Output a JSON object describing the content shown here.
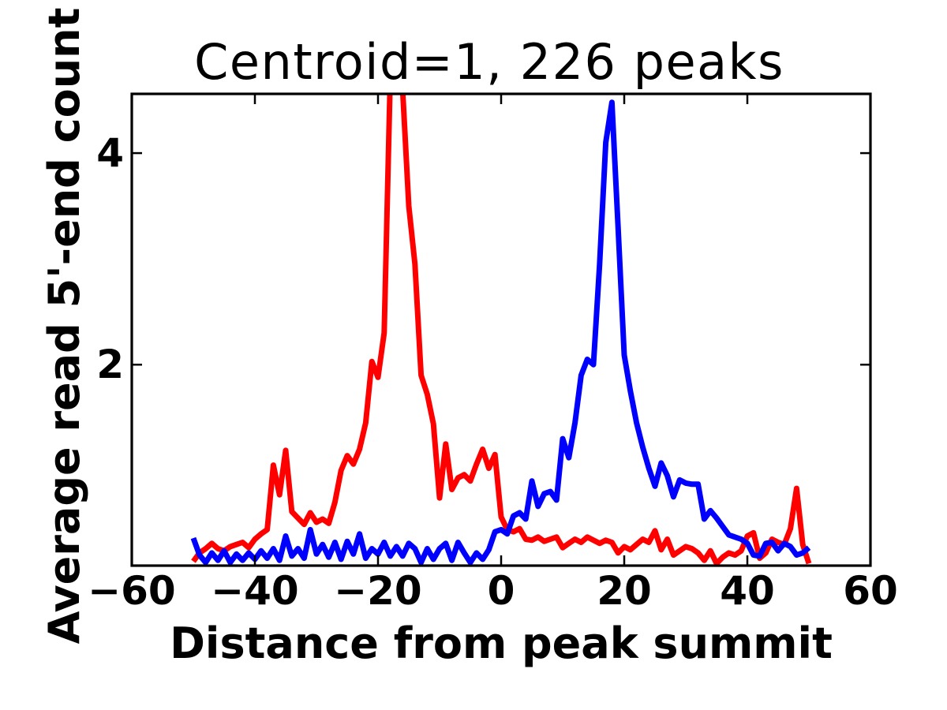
{
  "chart_data": {
    "type": "line",
    "title": "Centroid=1, 226 peaks",
    "xlabel": "Distance from peak summit",
    "ylabel": "Average read 5'-end count",
    "xlim": [
      -60,
      60
    ],
    "ylim": [
      0.1,
      4.56
    ],
    "xticks": [
      -60,
      -40,
      -20,
      0,
      20,
      40,
      60
    ],
    "xtick_labels": [
      "−60",
      "−40",
      "−20",
      "0",
      "20",
      "40",
      "60"
    ],
    "yticks": [
      2,
      4
    ],
    "ytick_labels": [
      "2",
      "4"
    ],
    "grid": false,
    "legend": "none",
    "frame_color": "#000000",
    "background_color": "#ffffff",
    "x": [
      -50,
      -49,
      -48,
      -47,
      -46,
      -45,
      -44,
      -43,
      -42,
      -41,
      -40,
      -39,
      -38,
      -37,
      -36,
      -35,
      -34,
      -33,
      -32,
      -31,
      -30,
      -29,
      -28,
      -27,
      -26,
      -25,
      -24,
      -23,
      -22,
      -21,
      -20,
      -19,
      -18,
      -17,
      -16,
      -15,
      -14,
      -13,
      -12,
      -11,
      -10,
      -9,
      -8,
      -7,
      -6,
      -5,
      -4,
      -3,
      -2,
      -1,
      0,
      1,
      2,
      3,
      4,
      5,
      6,
      7,
      8,
      9,
      10,
      11,
      12,
      13,
      14,
      15,
      16,
      17,
      18,
      19,
      20,
      21,
      22,
      23,
      24,
      25,
      26,
      27,
      28,
      29,
      30,
      31,
      32,
      33,
      34,
      35,
      36,
      37,
      38,
      39,
      40,
      41,
      42,
      43,
      44,
      45,
      46,
      47,
      48,
      49,
      50
    ],
    "series": [
      {
        "name": "red",
        "color": "#ff0000",
        "values": [
          0.14,
          0.22,
          0.26,
          0.31,
          0.26,
          0.24,
          0.28,
          0.3,
          0.32,
          0.27,
          0.35,
          0.4,
          0.44,
          1.05,
          0.77,
          1.19,
          0.61,
          0.55,
          0.49,
          0.6,
          0.51,
          0.54,
          0.5,
          0.7,
          1.0,
          1.14,
          1.06,
          1.2,
          1.45,
          2.03,
          1.88,
          2.3,
          4.75,
          4.95,
          4.6,
          3.5,
          2.95,
          1.9,
          1.72,
          1.44,
          0.74,
          1.25,
          0.82,
          0.93,
          0.96,
          0.9,
          1.06,
          1.2,
          1.02,
          1.15,
          0.56,
          0.44,
          0.42,
          0.45,
          0.35,
          0.34,
          0.37,
          0.33,
          0.35,
          0.37,
          0.27,
          0.31,
          0.35,
          0.32,
          0.37,
          0.34,
          0.31,
          0.34,
          0.32,
          0.22,
          0.28,
          0.25,
          0.3,
          0.35,
          0.32,
          0.43,
          0.25,
          0.35,
          0.2,
          0.24,
          0.28,
          0.26,
          0.22,
          0.15,
          0.24,
          0.12,
          0.18,
          0.22,
          0.2,
          0.24,
          0.38,
          0.41,
          0.17,
          0.22,
          0.35,
          0.32,
          0.3,
          0.45,
          0.83,
          0.3,
          0.12
        ]
      },
      {
        "name": "blue",
        "color": "#0000ff",
        "values": [
          0.36,
          0.2,
          0.13,
          0.22,
          0.15,
          0.24,
          0.13,
          0.21,
          0.15,
          0.22,
          0.16,
          0.24,
          0.17,
          0.26,
          0.15,
          0.38,
          0.19,
          0.26,
          0.17,
          0.44,
          0.21,
          0.3,
          0.18,
          0.32,
          0.16,
          0.33,
          0.21,
          0.4,
          0.17,
          0.26,
          0.21,
          0.32,
          0.19,
          0.28,
          0.19,
          0.31,
          0.26,
          0.13,
          0.26,
          0.16,
          0.26,
          0.31,
          0.15,
          0.32,
          0.22,
          0.13,
          0.22,
          0.16,
          0.25,
          0.42,
          0.44,
          0.4,
          0.57,
          0.6,
          0.54,
          0.9,
          0.66,
          0.78,
          0.8,
          0.72,
          1.3,
          1.12,
          1.45,
          1.9,
          2.05,
          2.0,
          2.95,
          4.1,
          4.48,
          3.3,
          2.09,
          1.75,
          1.45,
          1.22,
          1.02,
          0.85,
          1.07,
          0.95,
          0.75,
          0.91,
          0.88,
          0.87,
          0.87,
          0.54,
          0.62,
          0.55,
          0.47,
          0.39,
          0.37,
          0.35,
          0.31,
          0.2,
          0.19,
          0.31,
          0.32,
          0.24,
          0.31,
          0.28,
          0.2,
          0.22,
          0.27
        ]
      }
    ]
  }
}
